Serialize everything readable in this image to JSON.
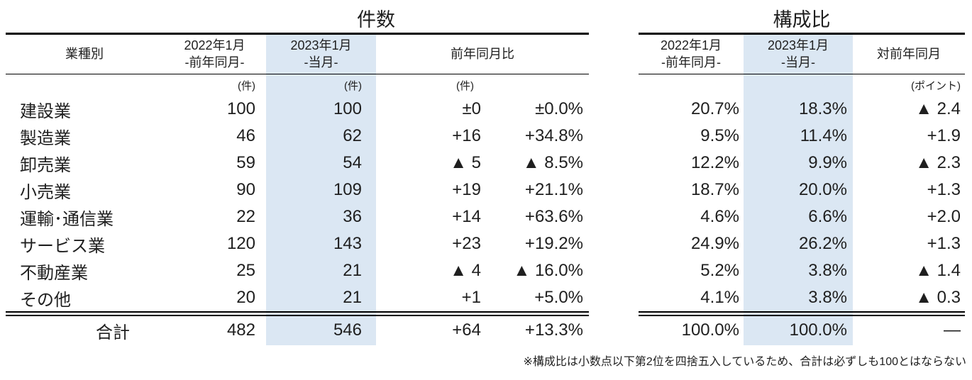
{
  "left_table": {
    "title": "件数",
    "header": {
      "industry": "業種別",
      "col_2022_line1": "2022年1月",
      "col_2022_line2": "-前年同月-",
      "col_2023_line1": "2023年1月",
      "col_2023_line2": "-当月-",
      "yoy": "前年同月比"
    },
    "units": {
      "col_2022": "(件)",
      "col_2023": "(件)",
      "yoy": "(件)"
    },
    "rows": [
      {
        "label": "建設業",
        "y2022": "100",
        "y2023": "100",
        "diff": "±0",
        "pct": "±0.0%"
      },
      {
        "label": "製造業",
        "y2022": "46",
        "y2023": "62",
        "diff": "+16",
        "pct": "+34.8%"
      },
      {
        "label": "卸売業",
        "y2022": "59",
        "y2023": "54",
        "diff": "▲ 5",
        "pct": "▲ 8.5%"
      },
      {
        "label": "小売業",
        "y2022": "90",
        "y2023": "109",
        "diff": "+19",
        "pct": "+21.1%"
      },
      {
        "label": "運輸･通信業",
        "y2022": "22",
        "y2023": "36",
        "diff": "+14",
        "pct": "+63.6%"
      },
      {
        "label": "サービス業",
        "y2022": "120",
        "y2023": "143",
        "diff": "+23",
        "pct": "+19.2%"
      },
      {
        "label": "不動産業",
        "y2022": "25",
        "y2023": "21",
        "diff": "▲ 4",
        "pct": "▲ 16.0%"
      },
      {
        "label": "その他",
        "y2022": "20",
        "y2023": "21",
        "diff": "+1",
        "pct": "+5.0%"
      }
    ],
    "total": {
      "label": "合計",
      "y2022": "482",
      "y2023": "546",
      "diff": "+64",
      "pct": "+13.3%"
    }
  },
  "right_table": {
    "title": "構成比",
    "header": {
      "col_2022_line1": "2022年1月",
      "col_2022_line2": "-前年同月-",
      "col_2023_line1": "2023年1月",
      "col_2023_line2": "-当月-",
      "vs_prev": "対前年同月"
    },
    "units": {
      "vs_prev": "(ポイント)"
    },
    "rows": [
      {
        "y2022": "20.7%",
        "y2023": "18.3%",
        "diff": "▲ 2.4"
      },
      {
        "y2022": "9.5%",
        "y2023": "11.4%",
        "diff": "+1.9"
      },
      {
        "y2022": "12.2%",
        "y2023": "9.9%",
        "diff": "▲ 2.3"
      },
      {
        "y2022": "18.7%",
        "y2023": "20.0%",
        "diff": "+1.3"
      },
      {
        "y2022": "4.6%",
        "y2023": "6.6%",
        "diff": "+2.0"
      },
      {
        "y2022": "24.9%",
        "y2023": "26.2%",
        "diff": "+1.3"
      },
      {
        "y2022": "5.2%",
        "y2023": "3.8%",
        "diff": "▲ 1.4"
      },
      {
        "y2022": "4.1%",
        "y2023": "3.8%",
        "diff": "▲ 0.3"
      }
    ],
    "total": {
      "y2022": "100.0%",
      "y2023": "100.0%",
      "diff": "—"
    }
  },
  "footnote": "※構成比は小数点以下第2位を四捨五入しているため、合計は必ずしも100とはならない",
  "colors": {
    "highlight": "#dbe7f3",
    "text": "#1f1f1f",
    "line": "#000000"
  }
}
